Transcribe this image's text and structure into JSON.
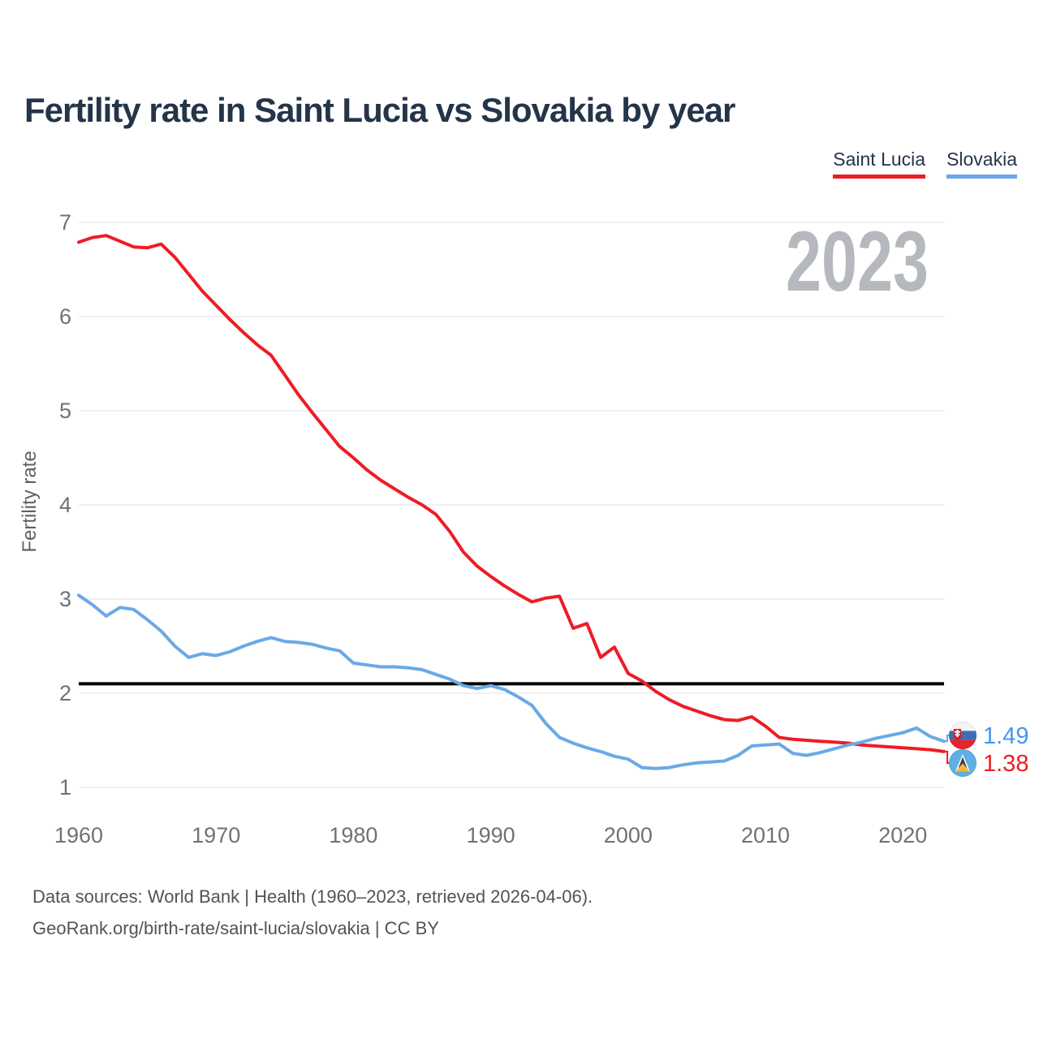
{
  "header": {
    "title": "Fertility rate in Saint Lucia vs Slovakia by year"
  },
  "legend": {
    "items": [
      {
        "label": "Saint Lucia",
        "color": "#ee1c25"
      },
      {
        "label": "Slovakia",
        "color": "#6aa9e6"
      }
    ]
  },
  "watermark": "2023",
  "chart_data": {
    "type": "line",
    "title": "Fertility rate in Saint Lucia vs Slovakia by year",
    "xlabel": "",
    "ylabel": "Fertility rate",
    "ylim": [
      1,
      7
    ],
    "yticks": [
      1,
      2,
      3,
      4,
      5,
      6,
      7
    ],
    "xticks": [
      1960,
      1970,
      1980,
      1990,
      2000,
      2010,
      2020
    ],
    "grid": "horizontal-only",
    "legend_position": "top-right",
    "x": [
      1960,
      1961,
      1962,
      1963,
      1964,
      1965,
      1966,
      1967,
      1968,
      1969,
      1970,
      1971,
      1972,
      1973,
      1974,
      1975,
      1976,
      1977,
      1978,
      1979,
      1980,
      1981,
      1982,
      1983,
      1984,
      1985,
      1986,
      1987,
      1988,
      1989,
      1990,
      1991,
      1992,
      1993,
      1994,
      1995,
      1996,
      1997,
      1998,
      1999,
      2000,
      2001,
      2002,
      2003,
      2004,
      2005,
      2006,
      2007,
      2008,
      2009,
      2010,
      2011,
      2012,
      2013,
      2014,
      2015,
      2016,
      2017,
      2018,
      2019,
      2020,
      2021,
      2022,
      2023
    ],
    "series": [
      {
        "name": "Saint Lucia",
        "color": "#ee1c25",
        "icon": "saint-lucia-flag-icon",
        "end_label": "1.38",
        "end_label_color": "#ee1c25",
        "values": [
          6.79,
          6.84,
          6.86,
          6.8,
          6.74,
          6.73,
          6.77,
          6.63,
          6.45,
          6.27,
          6.12,
          5.97,
          5.83,
          5.7,
          5.59,
          5.38,
          5.17,
          4.98,
          4.8,
          4.62,
          4.5,
          4.37,
          4.26,
          4.17,
          4.08,
          4.0,
          3.9,
          3.72,
          3.5,
          3.35,
          3.24,
          3.14,
          3.05,
          2.97,
          3.01,
          3.03,
          2.69,
          2.74,
          2.38,
          2.49,
          2.21,
          2.13,
          2.02,
          1.93,
          1.86,
          1.81,
          1.76,
          1.72,
          1.71,
          1.75,
          1.65,
          1.53,
          1.51,
          1.5,
          1.49,
          1.48,
          1.47,
          1.45,
          1.44,
          1.43,
          1.42,
          1.41,
          1.4,
          1.38
        ]
      },
      {
        "name": "Slovakia",
        "color": "#6aa9e6",
        "icon": "slovakia-flag-icon",
        "end_label": "1.49",
        "end_label_color": "#4496ea",
        "values": [
          3.04,
          2.94,
          2.82,
          2.91,
          2.89,
          2.78,
          2.66,
          2.5,
          2.38,
          2.42,
          2.4,
          2.44,
          2.5,
          2.55,
          2.59,
          2.55,
          2.54,
          2.52,
          2.48,
          2.45,
          2.32,
          2.3,
          2.28,
          2.28,
          2.27,
          2.25,
          2.2,
          2.15,
          2.08,
          2.05,
          2.08,
          2.04,
          1.96,
          1.87,
          1.68,
          1.53,
          1.47,
          1.42,
          1.38,
          1.33,
          1.3,
          1.21,
          1.2,
          1.21,
          1.24,
          1.26,
          1.27,
          1.28,
          1.34,
          1.44,
          1.45,
          1.46,
          1.36,
          1.34,
          1.37,
          1.41,
          1.45,
          1.48,
          1.52,
          1.55,
          1.58,
          1.63,
          1.54,
          1.49
        ]
      }
    ],
    "reference_line": {
      "value": 2.1,
      "color": "#000000"
    }
  },
  "footer": {
    "line1": "Data sources: World Bank | Health (1960–2023, retrieved 2026-04-06).",
    "line2": "GeoRank.org/birth-rate/saint-lucia/slovakia | CC BY"
  }
}
